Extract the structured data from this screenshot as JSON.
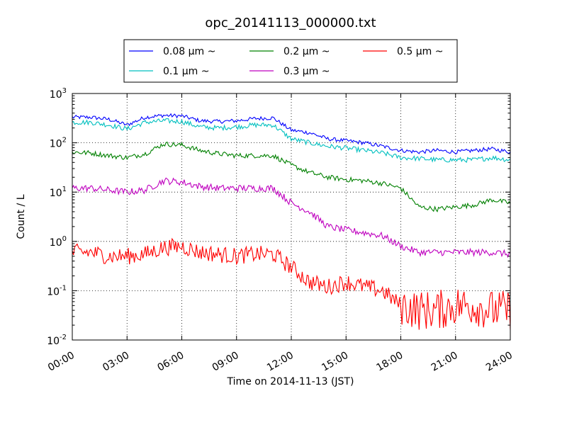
{
  "chart_data": {
    "type": "line",
    "title": "opc_20141113_000000.txt",
    "xlabel": "Time on 2014-11-13 (JST)",
    "ylabel": "Count / L",
    "yscale": "log",
    "ylim": [
      0.01,
      1000
    ],
    "xlim": [
      "00:00",
      "24:00"
    ],
    "x_ticks": [
      "00:00",
      "03:00",
      "06:00",
      "09:00",
      "12:00",
      "15:00",
      "18:00",
      "21:00",
      "24:00"
    ],
    "y_ticks": [
      {
        "base": "10",
        "exp": "-2",
        "value": 0.01
      },
      {
        "base": "10",
        "exp": "-1",
        "value": 0.1
      },
      {
        "base": "10",
        "exp": "0",
        "value": 1
      },
      {
        "base": "10",
        "exp": "1",
        "value": 10
      },
      {
        "base": "10",
        "exp": "2",
        "value": 100
      },
      {
        "base": "10",
        "exp": "3",
        "value": 1000
      }
    ],
    "grid": true,
    "legend_position": "top-center",
    "x": [
      "00:00",
      "01:00",
      "02:00",
      "03:00",
      "04:00",
      "05:00",
      "06:00",
      "07:00",
      "08:00",
      "09:00",
      "10:00",
      "11:00",
      "12:00",
      "13:00",
      "14:00",
      "15:00",
      "16:00",
      "17:00",
      "18:00",
      "19:00",
      "20:00",
      "21:00",
      "22:00",
      "23:00",
      "24:00"
    ],
    "series": [
      {
        "name": "0.08 μm ~",
        "color": "#0000ff",
        "values": [
          330,
          330,
          300,
          230,
          330,
          360,
          350,
          280,
          270,
          280,
          310,
          320,
          180,
          160,
          120,
          110,
          100,
          85,
          70,
          65,
          70,
          65,
          70,
          75,
          65
        ]
      },
      {
        "name": "0.1 μm ~",
        "color": "#00bfbf",
        "values": [
          260,
          260,
          230,
          190,
          260,
          280,
          270,
          210,
          200,
          210,
          230,
          230,
          120,
          100,
          85,
          78,
          70,
          62,
          50,
          48,
          45,
          45,
          45,
          50,
          45
        ]
      },
      {
        "name": "0.2 μm ~",
        "color": "#008000",
        "values": [
          65,
          62,
          55,
          50,
          60,
          95,
          90,
          70,
          60,
          55,
          55,
          55,
          35,
          25,
          20,
          18,
          17,
          15,
          12,
          5,
          4.5,
          5,
          5.5,
          7,
          6
        ]
      },
      {
        "name": "0.3 μm ~",
        "color": "#bf00bf",
        "values": [
          12,
          12,
          11,
          10,
          11,
          17,
          16,
          13,
          12,
          12,
          12,
          12,
          6,
          4,
          2,
          1.7,
          1.5,
          1.3,
          0.8,
          0.6,
          0.6,
          0.6,
          0.6,
          0.6,
          0.55
        ]
      },
      {
        "name": "0.5 μm ~",
        "color": "#ff0000",
        "values": [
          0.6,
          0.6,
          0.5,
          0.5,
          0.55,
          0.75,
          0.8,
          0.6,
          0.55,
          0.5,
          0.55,
          0.55,
          0.3,
          0.15,
          0.12,
          0.15,
          0.12,
          0.1,
          0.05,
          0.04,
          0.04,
          0.05,
          0.05,
          0.04,
          0.04
        ]
      }
    ]
  }
}
